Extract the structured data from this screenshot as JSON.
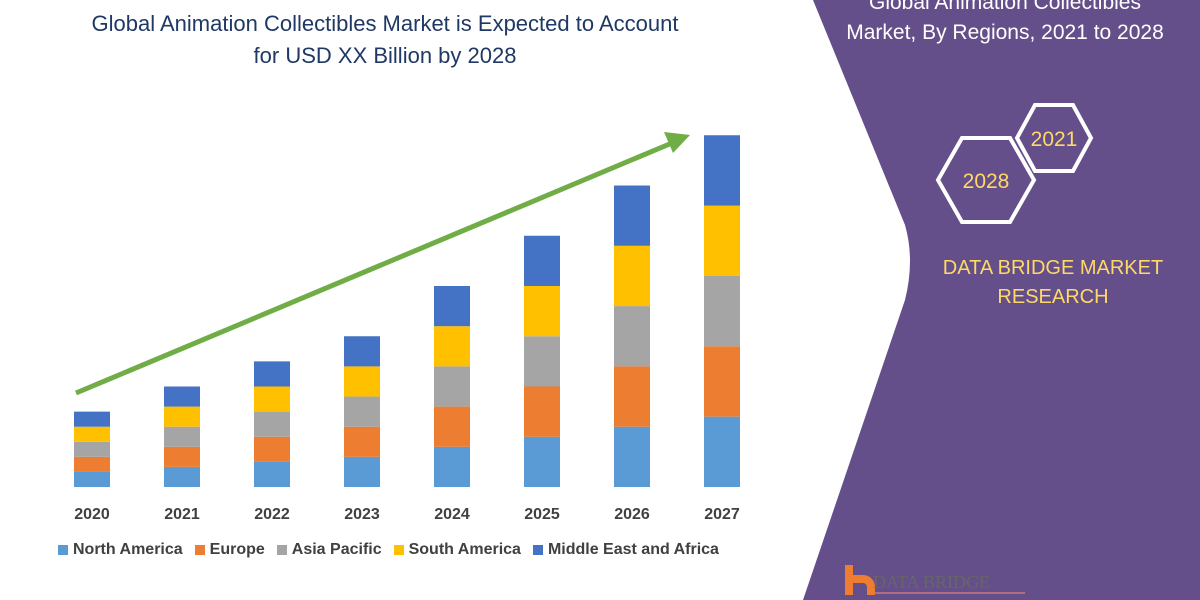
{
  "title": [
    "Global Animation Collectibles Market is Expected to Account",
    "for USD XX Billion by 2028"
  ],
  "side_panel": {
    "title": [
      "Global Animation Collectibles",
      "Market, By Regions, 2021 to 2028"
    ],
    "hex_labels": [
      "2021",
      "2028"
    ],
    "brand": [
      "DATA BRIDGE MARKET",
      "RESEARCH"
    ],
    "logo_text": "DATA BRIDGE",
    "background_color": "#654f8a"
  },
  "chart_data": {
    "type": "bar",
    "stacked": true,
    "categories": [
      "2020",
      "2021",
      "2022",
      "2023",
      "2024",
      "2025",
      "2026",
      "2027"
    ],
    "series": [
      {
        "name": "North America",
        "color": "#5b9bd5",
        "values": [
          15,
          20,
          25,
          30,
          40,
          50,
          60,
          70
        ]
      },
      {
        "name": "Europe",
        "color": "#ed7d31",
        "values": [
          15,
          20,
          25,
          30,
          40,
          50,
          60,
          70
        ]
      },
      {
        "name": "Asia Pacific",
        "color": "#a5a5a5",
        "values": [
          15,
          20,
          25,
          30,
          40,
          50,
          60,
          70
        ]
      },
      {
        "name": "South America",
        "color": "#ffc000",
        "values": [
          15,
          20,
          25,
          30,
          40,
          50,
          60,
          70
        ]
      },
      {
        "name": "Middle East and Africa",
        "color": "#4472c4",
        "values": [
          15,
          20,
          25,
          30,
          40,
          50,
          60,
          70
        ]
      }
    ],
    "trend_arrow_color": "#70ad47",
    "legend": "bottom",
    "grid": false
  }
}
